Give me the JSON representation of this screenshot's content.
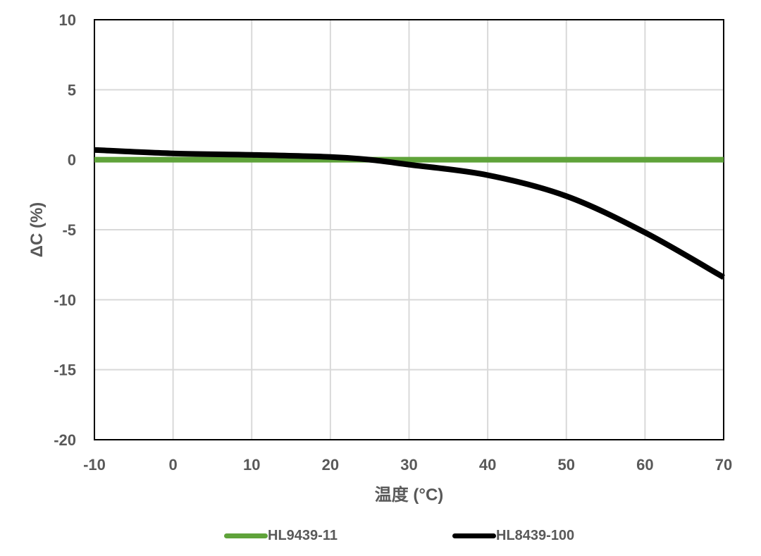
{
  "chart_data": {
    "type": "line",
    "xlabel": "温度 (°C)",
    "ylabel": "ΔC (%)",
    "xlim": [
      -10,
      70
    ],
    "ylim": [
      -20,
      10
    ],
    "x_ticks": [
      -10,
      0,
      10,
      20,
      30,
      40,
      50,
      60,
      70
    ],
    "x_tick_labels": [
      "-10",
      "0",
      "10",
      "20",
      "30",
      "40",
      "50",
      "60",
      "70"
    ],
    "y_ticks": [
      10,
      5,
      0,
      -5,
      -10,
      -15,
      -20
    ],
    "y_tick_labels": [
      "10",
      "5",
      "0",
      "-5",
      "-10",
      "-15",
      "-20"
    ],
    "grid": true,
    "legend_position": "bottom",
    "series": [
      {
        "name": "HL9439-11",
        "color": "#5fa33a",
        "x": [
          -10,
          0,
          10,
          20,
          30,
          40,
          50,
          60,
          70
        ],
        "y": [
          0,
          0,
          0,
          0,
          0,
          0,
          0,
          0,
          0
        ]
      },
      {
        "name": "HL8439-100",
        "color": "#000000",
        "x": [
          -10,
          0,
          10,
          20,
          25,
          30,
          40,
          50,
          60,
          70
        ],
        "y": [
          0.7,
          0.45,
          0.35,
          0.2,
          0.0,
          -0.35,
          -1.1,
          -2.6,
          -5.2,
          -8.4
        ]
      }
    ]
  }
}
